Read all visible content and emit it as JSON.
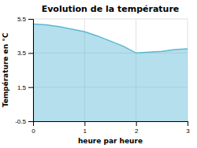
{
  "chart_data": {
    "type": "area",
    "title": "Evolution de la température",
    "xlabel": "heure par heure",
    "ylabel": "Température en °C",
    "x": [
      0,
      0.25,
      0.5,
      0.75,
      1.0,
      1.25,
      1.5,
      1.75,
      2.0,
      2.25,
      2.5,
      2.75,
      3.0
    ],
    "values": [
      5.2,
      5.15,
      5.05,
      4.9,
      4.75,
      4.5,
      4.2,
      3.9,
      3.5,
      3.55,
      3.6,
      3.7,
      3.75
    ],
    "xlim": [
      0,
      3
    ],
    "ylim": [
      -0.5,
      5.5
    ],
    "xticks": [
      0,
      1,
      2,
      3
    ],
    "yticks": [
      -0.5,
      1.5,
      3.5,
      5.5
    ],
    "color": "#5bb8d4",
    "grid": true
  }
}
